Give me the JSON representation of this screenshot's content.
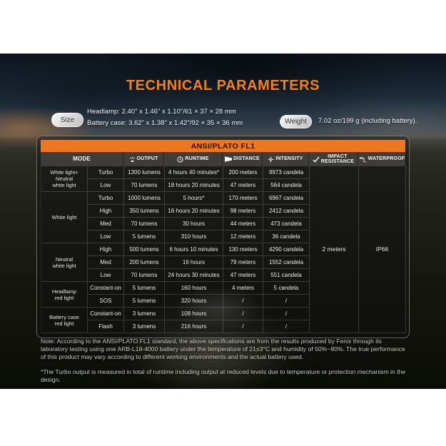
{
  "page": {
    "title": "TECHNICAL PARAMETERS"
  },
  "size": {
    "label": "Size",
    "lines": [
      "Headlamp: 2.40\" x 1.46\" x 1.10\"/61 × 37 × 28 mm",
      "Battery case: 3.62\" x 1.38\" x 1.42\"/92 × 35 × 36 mm"
    ]
  },
  "weight": {
    "label": "Weight",
    "value": "7.02 oz/199 g (including battery)."
  },
  "table": {
    "title": "ANSI/PLATO FL1",
    "columns": [
      {
        "label": "MODE",
        "icon": ""
      },
      {
        "label": "OUTPUT",
        "icon": "output-icon"
      },
      {
        "label": "RUNTIME",
        "icon": "runtime-icon"
      },
      {
        "label": "DISTANCE",
        "icon": "distance-icon"
      },
      {
        "label": "INTENSITY",
        "icon": "intensity-icon"
      },
      {
        "label": "IMPACT\nRESISTANCE",
        "icon": "impact-resistance-icon"
      },
      {
        "label": "WATERPROOF",
        "icon": "waterproof-icon"
      }
    ],
    "groups": [
      {
        "label": "White light+\nNeutral\nwhite light",
        "rows": [
          {
            "mode": "Turbo",
            "output": "1300 lumens",
            "runtime": "4 hours 40 minutes*",
            "distance": "200 meters",
            "intensity": "9973 candela"
          },
          {
            "mode": "Low",
            "output": "70 lumens",
            "runtime": "18 hours 20 minutes",
            "distance": "47 meters",
            "intensity": "564 candela"
          }
        ]
      },
      {
        "label": "White light",
        "rows": [
          {
            "mode": "Turbo",
            "output": "1000 lumens",
            "runtime": "5 hours*",
            "distance": "170 meters",
            "intensity": "6967 candela"
          },
          {
            "mode": "High",
            "output": "350 lumens",
            "runtime": "16 hours 20 minutes",
            "distance": "98 meters",
            "intensity": "2412 candela"
          },
          {
            "mode": "Med",
            "output": "70 lumens",
            "runtime": "30 hours",
            "distance": "44 meters",
            "intensity": "473 candela"
          },
          {
            "mode": "Low",
            "output": "5 lumens",
            "runtime": "310 hours",
            "distance": "12 meters",
            "intensity": "36 candela"
          }
        ]
      },
      {
        "label": "Neutral\nwhite light",
        "rows": [
          {
            "mode": "High",
            "output": "500 lumens",
            "runtime": "6 hours 10 minutes",
            "distance": "130 meters",
            "intensity": "4290 candela"
          },
          {
            "mode": "Med",
            "output": "200 lumens",
            "runtime": "16 hours",
            "distance": "79 meters",
            "intensity": "1552 candela"
          },
          {
            "mode": "Low",
            "output": "70 lumens",
            "runtime": "24 hours 30 minutes",
            "distance": "47 meters",
            "intensity": "551 candela"
          }
        ]
      },
      {
        "label": "Headlamp\nred light",
        "rows": [
          {
            "mode": "Constant-on",
            "output": "5 lumens",
            "runtime": "160 hours",
            "distance": "4 meters",
            "intensity": "5 candela"
          },
          {
            "mode": "SOS",
            "output": "5 lumens",
            "runtime": "320 hours",
            "distance": "/",
            "intensity": "/"
          }
        ]
      },
      {
        "label": "Battery case\nred light",
        "rows": [
          {
            "mode": "Constant-on",
            "output": "3 lumens",
            "runtime": "108 hours",
            "distance": "/",
            "intensity": "/"
          },
          {
            "mode": "Flash",
            "output": "3 lumens",
            "runtime": "216 hours",
            "distance": "/",
            "intensity": "/"
          }
        ]
      }
    ],
    "impact_resistance": "2 meters",
    "waterproof": "IP66"
  },
  "notes": [
    "Note: According to the ANSI/PLATO FL1 standard, the above specifications are from the results produced by Fenix through its laboratory testing using one ARB-L18-4000 battery under the temperature of 21±3°C and humidity of 50%~80%. The true performance of this product may vary according to different working environments and the actual battery used.",
    "*The Turbo output is measured in total of runtime including output at reduced levels due to temperature or protection mechanism in the design."
  ],
  "colors": {
    "accent_orange": "#ed7621",
    "header_gray": "#3e3d3c"
  }
}
